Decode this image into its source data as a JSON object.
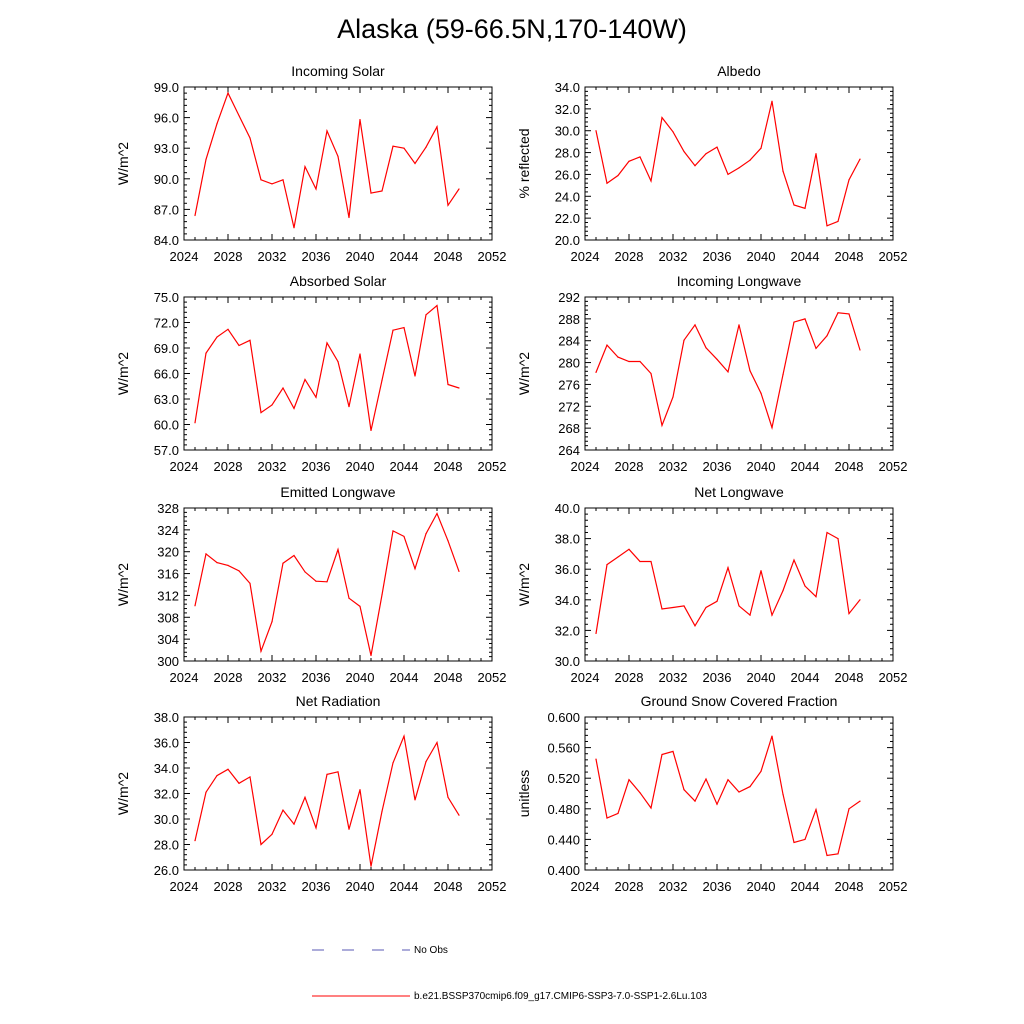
{
  "title": "Alaska (59-66.5N,170-140W)",
  "colors": {
    "model": "#ff0000",
    "obs": "#5a5ab4",
    "axis": "#000000"
  },
  "legend": {
    "obs_label": "No Obs",
    "model_label": "b.e21.BSSP370cmip6.f09_g17.CMIP6-SSP3-7.0-SSP1-2.6Lu.103"
  },
  "chart_data": [
    {
      "type": "line",
      "title": "Incoming Solar",
      "ylabel": "W/m^2",
      "xlim": [
        2024,
        2052
      ],
      "xticks": [
        2024,
        2028,
        2032,
        2036,
        2040,
        2044,
        2048,
        2052
      ],
      "ylim": [
        84,
        99
      ],
      "yticks": [
        "84.0",
        "87.0",
        "90.0",
        "93.0",
        "96.0",
        "99.0"
      ],
      "x": [
        2025,
        2026,
        2027,
        2028,
        2029,
        2030,
        2031,
        2032,
        2033,
        2034,
        2035,
        2036,
        2037,
        2038,
        2039,
        2040,
        2041,
        2042,
        2043,
        2044,
        2045,
        2046,
        2047,
        2048,
        2049
      ],
      "series": [
        {
          "name": "model",
          "values": [
            86.4,
            91.9,
            95.4,
            98.4,
            96.2,
            94.0,
            89.9,
            89.5,
            89.9,
            85.2,
            91.2,
            89.0,
            94.7,
            92.2,
            86.2,
            95.8,
            88.6,
            88.8,
            93.2,
            93.0,
            91.5,
            93.1,
            95.1,
            87.4,
            89.0
          ]
        }
      ]
    },
    {
      "type": "line",
      "title": "Albedo",
      "ylabel": "% reflected",
      "xlim": [
        2024,
        2052
      ],
      "xticks": [
        2024,
        2028,
        2032,
        2036,
        2040,
        2044,
        2048,
        2052
      ],
      "ylim": [
        20,
        34
      ],
      "yticks": [
        "20.0",
        "22.0",
        "24.0",
        "26.0",
        "28.0",
        "30.0",
        "32.0",
        "34.0"
      ],
      "x": [
        2025,
        2026,
        2027,
        2028,
        2029,
        2030,
        2031,
        2032,
        2033,
        2034,
        2035,
        2036,
        2037,
        2038,
        2039,
        2040,
        2041,
        2042,
        2043,
        2044,
        2045,
        2046,
        2047,
        2048,
        2049
      ],
      "series": [
        {
          "name": "model",
          "values": [
            30.0,
            25.2,
            25.9,
            27.2,
            27.6,
            25.4,
            31.2,
            29.9,
            28.1,
            26.8,
            27.9,
            28.5,
            26.0,
            26.6,
            27.3,
            28.4,
            32.7,
            26.3,
            23.2,
            22.9,
            27.9,
            21.3,
            21.7,
            25.5,
            27.4
          ]
        }
      ]
    },
    {
      "type": "line",
      "title": "Absorbed Solar",
      "ylabel": "W/m^2",
      "xlim": [
        2024,
        2052
      ],
      "xticks": [
        2024,
        2028,
        2032,
        2036,
        2040,
        2044,
        2048,
        2052
      ],
      "ylim": [
        57,
        75
      ],
      "yticks": [
        "57.0",
        "60.0",
        "63.0",
        "66.0",
        "69.0",
        "72.0",
        "75.0"
      ],
      "x": [
        2025,
        2026,
        2027,
        2028,
        2029,
        2030,
        2031,
        2032,
        2033,
        2034,
        2035,
        2036,
        2037,
        2038,
        2039,
        2040,
        2041,
        2042,
        2043,
        2044,
        2045,
        2046,
        2047,
        2048,
        2049
      ],
      "series": [
        {
          "name": "model",
          "values": [
            60.2,
            68.4,
            70.3,
            71.2,
            69.3,
            69.9,
            61.4,
            62.3,
            64.3,
            61.9,
            65.3,
            63.2,
            69.6,
            67.4,
            62.1,
            68.3,
            59.3,
            65.2,
            71.1,
            71.4,
            65.7,
            72.9,
            74.0,
            64.7,
            64.3
          ]
        }
      ]
    },
    {
      "type": "line",
      "title": "Incoming Longwave",
      "ylabel": "W/m^2",
      "xlim": [
        2024,
        2052
      ],
      "xticks": [
        2024,
        2028,
        2032,
        2036,
        2040,
        2044,
        2048,
        2052
      ],
      "ylim": [
        264,
        292
      ],
      "yticks": [
        "264",
        "268",
        "272",
        "276",
        "280",
        "284",
        "288",
        "292"
      ],
      "x": [
        2025,
        2026,
        2027,
        2028,
        2029,
        2030,
        2031,
        2032,
        2033,
        2034,
        2035,
        2036,
        2037,
        2038,
        2039,
        2040,
        2041,
        2042,
        2043,
        2044,
        2045,
        2046,
        2047,
        2048,
        2049
      ],
      "series": [
        {
          "name": "model",
          "values": [
            278.2,
            283.2,
            281.0,
            280.2,
            280.2,
            278.0,
            268.5,
            273.7,
            284.1,
            286.9,
            282.7,
            280.6,
            278.3,
            286.9,
            278.5,
            274.4,
            268.1,
            277.8,
            287.4,
            288.0,
            282.6,
            284.9,
            289.1,
            288.9,
            282.3
          ]
        }
      ]
    },
    {
      "type": "line",
      "title": "Emitted Longwave",
      "ylabel": "W/m^2",
      "xlim": [
        2024,
        2052
      ],
      "xticks": [
        2024,
        2028,
        2032,
        2036,
        2040,
        2044,
        2048,
        2052
      ],
      "ylim": [
        300,
        328
      ],
      "yticks": [
        "300",
        "304",
        "308",
        "312",
        "316",
        "320",
        "324",
        "328"
      ],
      "x": [
        2025,
        2026,
        2027,
        2028,
        2029,
        2030,
        2031,
        2032,
        2033,
        2034,
        2035,
        2036,
        2037,
        2038,
        2039,
        2040,
        2041,
        2042,
        2043,
        2044,
        2045,
        2046,
        2047,
        2048,
        2049
      ],
      "series": [
        {
          "name": "model",
          "values": [
            310.1,
            319.6,
            318.0,
            317.5,
            316.5,
            314.2,
            301.8,
            307.2,
            317.9,
            319.3,
            316.3,
            314.6,
            314.5,
            320.4,
            311.5,
            310.0,
            301.0,
            312.1,
            323.8,
            322.8,
            316.9,
            323.3,
            327.0,
            322.0,
            316.4
          ]
        }
      ]
    },
    {
      "type": "line",
      "title": "Net Longwave",
      "ylabel": "W/m^2",
      "xlim": [
        2024,
        2052
      ],
      "xticks": [
        2024,
        2028,
        2032,
        2036,
        2040,
        2044,
        2048,
        2052
      ],
      "ylim": [
        30,
        40
      ],
      "yticks": [
        "30.0",
        "32.0",
        "34.0",
        "36.0",
        "38.0",
        "40.0"
      ],
      "x": [
        2025,
        2026,
        2027,
        2028,
        2029,
        2030,
        2031,
        2032,
        2033,
        2034,
        2035,
        2036,
        2037,
        2038,
        2039,
        2040,
        2041,
        2042,
        2043,
        2044,
        2045,
        2046,
        2047,
        2048,
        2049
      ],
      "series": [
        {
          "name": "model",
          "values": [
            31.8,
            36.3,
            36.8,
            37.3,
            36.5,
            36.5,
            33.4,
            33.5,
            33.6,
            32.3,
            33.5,
            33.9,
            36.1,
            33.6,
            33.0,
            35.9,
            33.0,
            34.6,
            36.6,
            34.9,
            34.2,
            38.4,
            38.0,
            33.1,
            34.0
          ]
        }
      ]
    },
    {
      "type": "line",
      "title": "Net Radiation",
      "ylabel": "W/m^2",
      "xlim": [
        2024,
        2052
      ],
      "xticks": [
        2024,
        2028,
        2032,
        2036,
        2040,
        2044,
        2048,
        2052
      ],
      "ylim": [
        26,
        38
      ],
      "yticks": [
        "26.0",
        "28.0",
        "30.0",
        "32.0",
        "34.0",
        "36.0",
        "38.0"
      ],
      "x": [
        2025,
        2026,
        2027,
        2028,
        2029,
        2030,
        2031,
        2032,
        2033,
        2034,
        2035,
        2036,
        2037,
        2038,
        2039,
        2040,
        2041,
        2042,
        2043,
        2044,
        2045,
        2046,
        2047,
        2048,
        2049
      ],
      "series": [
        {
          "name": "model",
          "values": [
            28.3,
            32.1,
            33.4,
            33.9,
            32.8,
            33.3,
            28.0,
            28.8,
            30.7,
            29.6,
            31.7,
            29.3,
            33.5,
            33.7,
            29.2,
            32.3,
            26.3,
            30.6,
            34.4,
            36.5,
            31.5,
            34.5,
            36.0,
            31.7,
            30.3
          ]
        }
      ]
    },
    {
      "type": "line",
      "title": "Ground Snow Covered Fraction",
      "ylabel": "unitless",
      "xlim": [
        2024,
        2052
      ],
      "xticks": [
        2024,
        2028,
        2032,
        2036,
        2040,
        2044,
        2048,
        2052
      ],
      "ylim": [
        0.4,
        0.6
      ],
      "yticks": [
        "0.400",
        "0.440",
        "0.480",
        "0.520",
        "0.560",
        "0.600"
      ],
      "x": [
        2025,
        2026,
        2027,
        2028,
        2029,
        2030,
        2031,
        2032,
        2033,
        2034,
        2035,
        2036,
        2037,
        2038,
        2039,
        2040,
        2041,
        2042,
        2043,
        2044,
        2045,
        2046,
        2047,
        2048,
        2049
      ],
      "series": [
        {
          "name": "model",
          "values": [
            0.545,
            0.468,
            0.474,
            0.518,
            0.501,
            0.481,
            0.551,
            0.555,
            0.505,
            0.49,
            0.519,
            0.486,
            0.518,
            0.502,
            0.509,
            0.529,
            0.575,
            0.499,
            0.436,
            0.44,
            0.479,
            0.419,
            0.421,
            0.48,
            0.49
          ]
        }
      ]
    }
  ]
}
